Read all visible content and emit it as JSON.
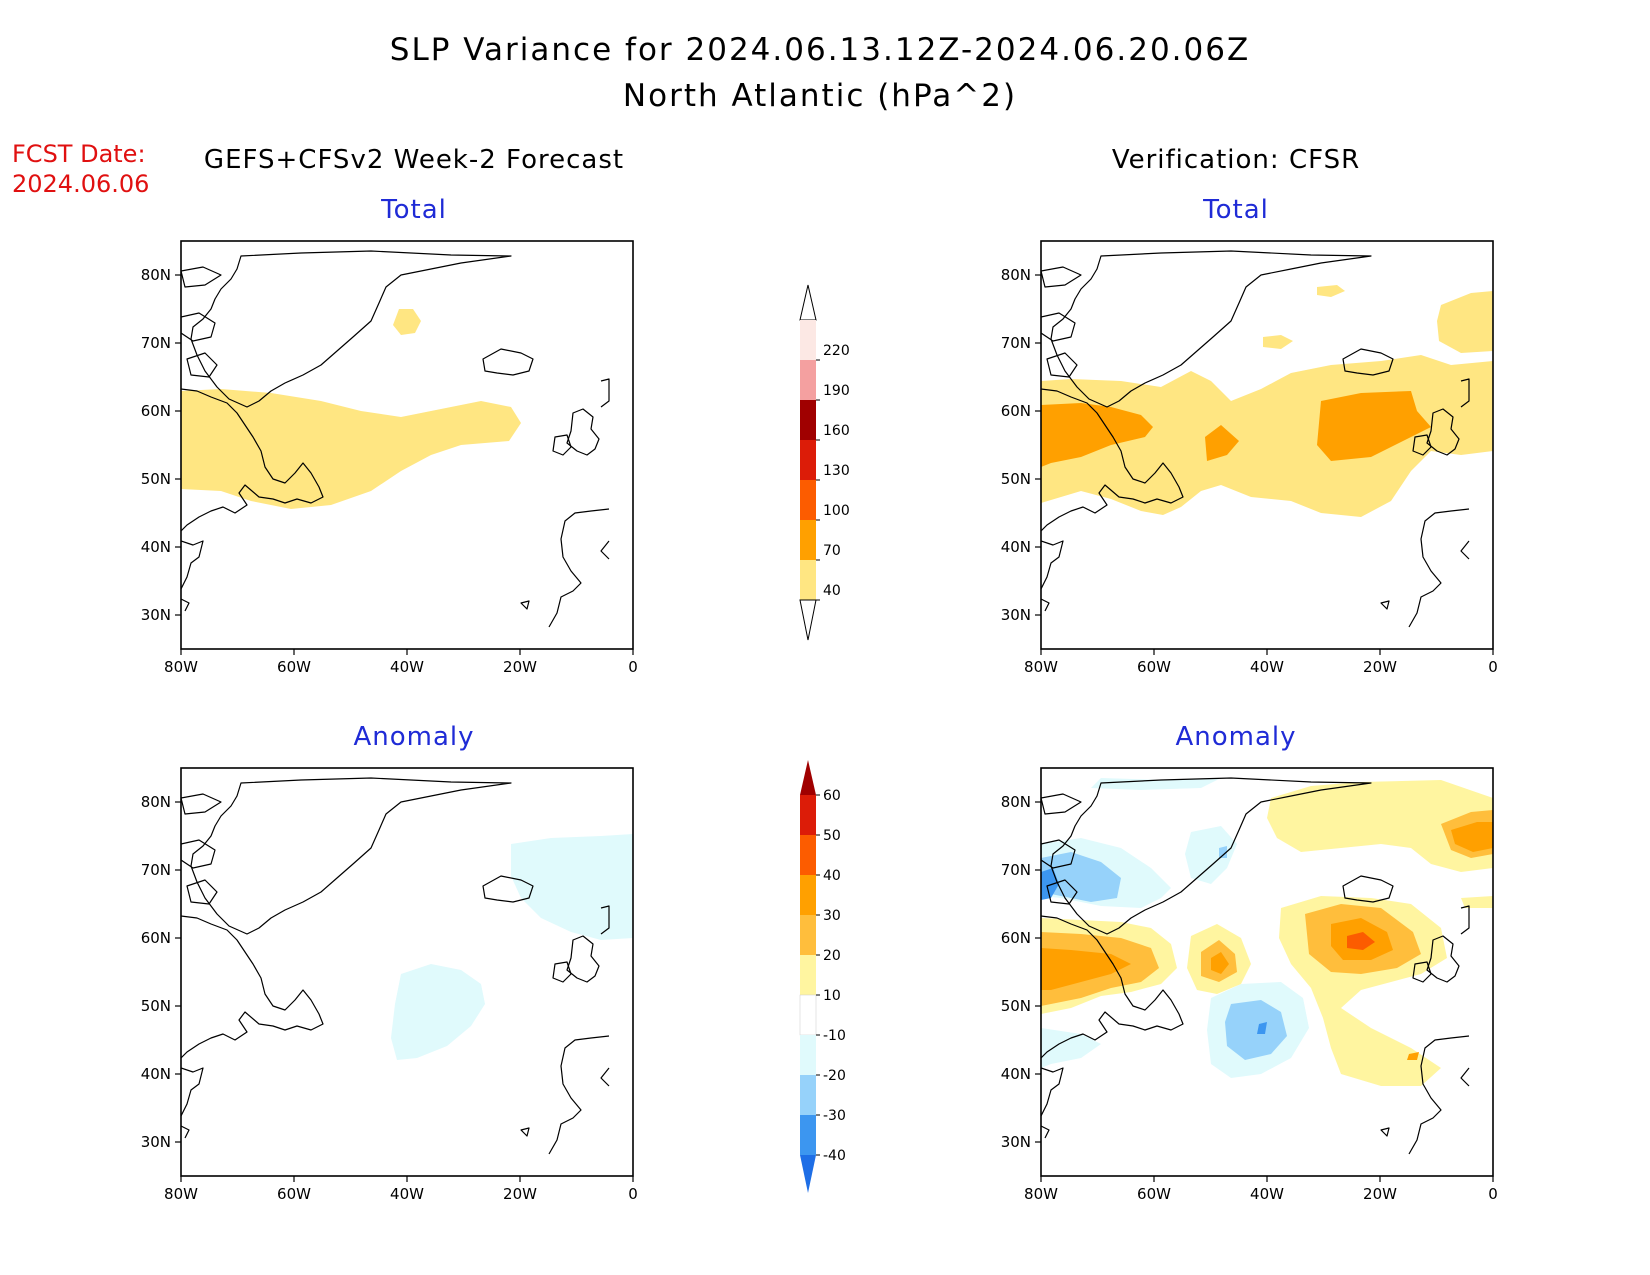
{
  "title_line1": "SLP Variance for 2024.06.13.12Z-2024.06.20.06Z",
  "title_line2": "North Atlantic (hPa^2)",
  "fcst_label": "FCST Date:",
  "fcst_date": "2024.06.06",
  "left_column_title": "GEFS+CFSv2 Week-2 Forecast",
  "right_column_title": "Verification: CFSR",
  "panels": {
    "fcst_total": "Total",
    "fcst_anomaly": "Anomaly",
    "verif_total": "Total",
    "verif_anomaly": "Anomaly"
  },
  "axes": {
    "lon_ticks": [
      "80W",
      "60W",
      "40W",
      "20W",
      "0"
    ],
    "lat_ticks": [
      "80N",
      "70N",
      "60N",
      "50N",
      "40N",
      "30N"
    ],
    "lon_range": [
      -80,
      0
    ],
    "lat_range": [
      25,
      85
    ]
  },
  "total_colorbar": {
    "levels": [
      "220",
      "190",
      "160",
      "130",
      "100",
      "70",
      "40"
    ],
    "colors": [
      "#fce8e4",
      "#f4a0a0",
      "#a00000",
      "#dc1c08",
      "#fc5c00",
      "#ffa000",
      "#ffe682"
    ]
  },
  "anomaly_colorbar": {
    "levels": [
      "60",
      "50",
      "40",
      "30",
      "20",
      "10",
      "-10",
      "-20",
      "-30",
      "-40"
    ],
    "colors": [
      "#a00000",
      "#dc1c08",
      "#fc5c00",
      "#ffa000",
      "#ffbe3c",
      "#fff5a0",
      "#ffffff",
      "#e0fafc",
      "#96d2fa",
      "#3c96f0",
      "#1e6ee6"
    ]
  }
}
